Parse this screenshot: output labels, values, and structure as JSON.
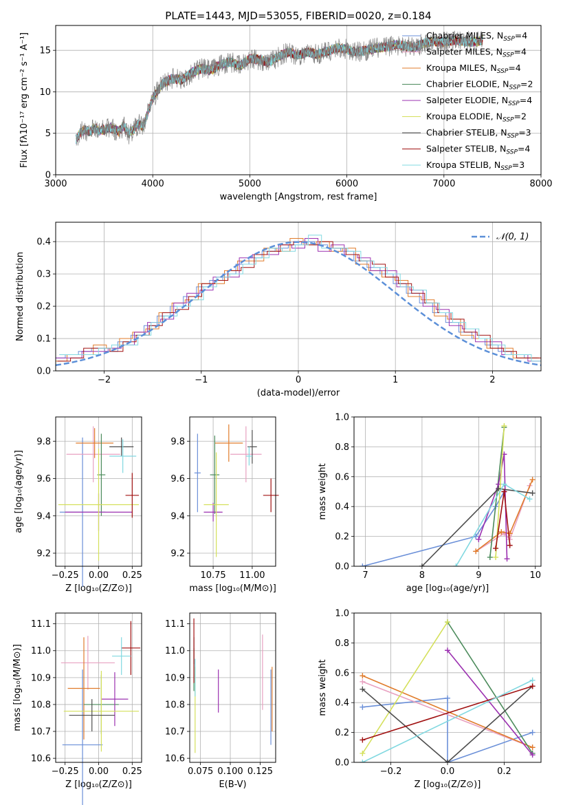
{
  "figure": {
    "title": "PLATE=1443, MJD=53055, FIBERID=0020, z=0.184"
  },
  "models": [
    {
      "name": "Chabrier MILES",
      "nssp": "4",
      "color": "#6a8fd8"
    },
    {
      "name": "Salpeter MILES",
      "nssp": "4",
      "color": "#e8a0c0"
    },
    {
      "name": "Kroupa MILES",
      "nssp": "4",
      "color": "#e07b2a"
    },
    {
      "name": "Chabrier ELODIE",
      "nssp": "2",
      "color": "#4a8a5a"
    },
    {
      "name": "Salpeter ELODIE",
      "nssp": "4",
      "color": "#9b30b0"
    },
    {
      "name": "Kroupa ELODIE",
      "nssp": "2",
      "color": "#d4e05a"
    },
    {
      "name": "Chabrier STELIB",
      "nssp": "3",
      "color": "#4d4d4d"
    },
    {
      "name": "Salpeter STELIB",
      "nssp": "4",
      "color": "#a01010"
    },
    {
      "name": "Kroupa STELIB",
      "nssp": "3",
      "color": "#80d8e0"
    }
  ],
  "chart_data": [
    {
      "id": "spectrum",
      "type": "line",
      "xlabel": "wavelength [Angstrom, rest frame]",
      "ylabel": "Flux [fλ10⁻¹⁷ erg cm⁻² s⁻¹ A⁻¹]",
      "xlim": [
        3000,
        8000
      ],
      "ylim": [
        0,
        18
      ],
      "xticks": [
        3000,
        4000,
        5000,
        6000,
        7000,
        8000
      ],
      "yticks": [
        0,
        5,
        10,
        15
      ],
      "data_color": "#808080",
      "x": [
        3210,
        3250,
        3300,
        3350,
        3400,
        3450,
        3500,
        3550,
        3600,
        3650,
        3700,
        3750,
        3800,
        3850,
        3900,
        3950,
        4000,
        4100,
        4200,
        4300,
        4400,
        4500,
        4600,
        4700,
        4800,
        4900,
        5000,
        5100,
        5200,
        5300,
        5400,
        5500,
        5600,
        5700,
        5800,
        5900,
        6000,
        6100,
        6200,
        6300,
        6400,
        6500,
        6600,
        6700,
        6800,
        6900,
        7000,
        7100,
        7200,
        7300,
        7400
      ],
      "y": [
        4.3,
        5.0,
        5.4,
        5.2,
        5.6,
        5.3,
        5.4,
        5.7,
        5.5,
        5.2,
        5.9,
        4.9,
        5.4,
        6.1,
        5.8,
        7.5,
        9.2,
        11.0,
        11.6,
        11.4,
        12.3,
        12.8,
        12.6,
        13.3,
        13.6,
        13.1,
        14.0,
        13.9,
        13.5,
        14.3,
        14.8,
        14.4,
        14.8,
        14.5,
        14.9,
        15.3,
        15.1,
        14.8,
        15.0,
        15.3,
        15.4,
        15.7,
        15.5,
        15.4,
        15.9,
        16.1,
        16.0,
        16.2,
        16.1,
        16.0,
        16.2
      ]
    },
    {
      "id": "residuals",
      "type": "line",
      "xlabel": "(data-model)/error",
      "ylabel": "Normed distribution",
      "xlim": [
        -2.5,
        2.5
      ],
      "ylim": [
        0,
        0.46
      ],
      "xticks": [
        -2,
        -1,
        0,
        1,
        2
      ],
      "yticks": [
        0.0,
        0.1,
        0.2,
        0.3,
        0.4
      ],
      "legend": "𝒩(0, 1)",
      "series": [
        {
          "model": 0,
          "values": [
            0.04,
            0.05,
            0.06,
            0.07,
            0.06,
            0.09,
            0.11,
            0.14,
            0.17,
            0.2,
            0.23,
            0.26,
            0.28,
            0.3,
            0.33,
            0.35,
            0.37,
            0.38,
            0.39,
            0.4,
            0.39,
            0.38,
            0.37,
            0.34,
            0.32,
            0.3,
            0.27,
            0.24,
            0.21,
            0.18,
            0.15,
            0.12,
            0.1,
            0.08,
            0.06,
            0.05,
            0.04
          ]
        },
        {
          "model": 2,
          "values": [
            0.03,
            0.05,
            0.05,
            0.08,
            0.07,
            0.1,
            0.12,
            0.13,
            0.18,
            0.21,
            0.22,
            0.27,
            0.27,
            0.31,
            0.34,
            0.34,
            0.38,
            0.37,
            0.41,
            0.39,
            0.4,
            0.37,
            0.38,
            0.33,
            0.31,
            0.29,
            0.28,
            0.23,
            0.22,
            0.17,
            0.16,
            0.11,
            0.1,
            0.07,
            0.07,
            0.04,
            0.04
          ]
        },
        {
          "model": 4,
          "values": [
            0.04,
            0.04,
            0.06,
            0.06,
            0.07,
            0.08,
            0.12,
            0.15,
            0.16,
            0.21,
            0.24,
            0.25,
            0.29,
            0.29,
            0.35,
            0.36,
            0.36,
            0.39,
            0.38,
            0.41,
            0.37,
            0.39,
            0.36,
            0.35,
            0.31,
            0.31,
            0.26,
            0.25,
            0.2,
            0.19,
            0.14,
            0.13,
            0.09,
            0.09,
            0.05,
            0.05,
            0.03
          ]
        },
        {
          "model": 7,
          "values": [
            0.03,
            0.04,
            0.07,
            0.07,
            0.06,
            0.09,
            0.11,
            0.14,
            0.18,
            0.19,
            0.23,
            0.27,
            0.28,
            0.31,
            0.32,
            0.36,
            0.37,
            0.39,
            0.4,
            0.39,
            0.4,
            0.38,
            0.36,
            0.34,
            0.33,
            0.29,
            0.27,
            0.24,
            0.21,
            0.18,
            0.16,
            0.12,
            0.11,
            0.07,
            0.06,
            0.04,
            0.04
          ]
        },
        {
          "model": 8,
          "values": [
            0.05,
            0.05,
            0.05,
            0.07,
            0.08,
            0.08,
            0.11,
            0.15,
            0.17,
            0.2,
            0.22,
            0.26,
            0.29,
            0.3,
            0.33,
            0.35,
            0.38,
            0.37,
            0.39,
            0.42,
            0.38,
            0.38,
            0.37,
            0.34,
            0.32,
            0.3,
            0.26,
            0.25,
            0.21,
            0.18,
            0.15,
            0.13,
            0.1,
            0.08,
            0.05,
            0.05,
            0.03
          ]
        }
      ]
    },
    {
      "id": "age-vs-Z",
      "type": "scatter",
      "xlabel": "Z [log₁₀(Z/Z⊙)]",
      "ylabel": "age  [log₁₀(age/yr)]",
      "xlim": [
        -0.32,
        0.32
      ],
      "ylim": [
        9.13,
        9.93
      ],
      "xticks": [
        -0.25,
        0.0,
        0.25
      ],
      "yticks": [
        9.2,
        9.4,
        9.6,
        9.8
      ],
      "points": [
        {
          "model": 0,
          "x": -0.12,
          "xerr": 0.17,
          "y": 9.42,
          "yerr": 0.4
        },
        {
          "model": 1,
          "x": -0.04,
          "xerr": 0.2,
          "y": 9.73,
          "yerr": 0.15
        },
        {
          "model": 2,
          "x": -0.03,
          "xerr": 0.14,
          "y": 9.79,
          "yerr": 0.08
        },
        {
          "model": 3,
          "x": 0.02,
          "xerr": 0.03,
          "y": 9.62,
          "yerr": 0.22
        },
        {
          "model": 4,
          "x": 0.0,
          "xerr": 0.25,
          "y": 9.42,
          "yerr": 0.1
        },
        {
          "model": 5,
          "x": 0.0,
          "xerr": 0.3,
          "y": 9.46,
          "yerr": 0.3
        },
        {
          "model": 6,
          "x": 0.17,
          "xerr": 0.09,
          "y": 9.77,
          "yerr": 0.05
        },
        {
          "model": 7,
          "x": 0.25,
          "xerr": 0.05,
          "y": 9.51,
          "yerr": 0.12
        },
        {
          "model": 8,
          "x": 0.18,
          "xerr": 0.1,
          "y": 9.72,
          "yerr": 0.09
        }
      ]
    },
    {
      "id": "age-vs-mass",
      "type": "scatter",
      "xlabel": "mass [log₁₀(M/M⊙)]",
      "ylabel": "",
      "xlim": [
        10.6,
        11.15
      ],
      "ylim": [
        9.13,
        9.93
      ],
      "xticks": [
        10.75,
        11.0
      ],
      "yticks": [
        9.2,
        9.4,
        9.6,
        9.8
      ],
      "points": [
        {
          "model": 0,
          "x": 10.65,
          "xerr": 0.02,
          "y": 9.63,
          "yerr": 0.21
        },
        {
          "model": 1,
          "x": 10.96,
          "xerr": 0.1,
          "y": 9.73,
          "yerr": 0.15
        },
        {
          "model": 2,
          "x": 10.85,
          "xerr": 0.09,
          "y": 9.79,
          "yerr": 0.1
        },
        {
          "model": 3,
          "x": 10.76,
          "xerr": 0.03,
          "y": 9.62,
          "yerr": 0.21
        },
        {
          "model": 4,
          "x": 10.75,
          "xerr": 0.06,
          "y": 9.42,
          "yerr": 0.05
        },
        {
          "model": 5,
          "x": 10.77,
          "xerr": 0.08,
          "y": 9.46,
          "yerr": 0.28
        },
        {
          "model": 6,
          "x": 11.0,
          "xerr": 0.03,
          "y": 9.77,
          "yerr": 0.09
        },
        {
          "model": 7,
          "x": 11.12,
          "xerr": 0.05,
          "y": 9.51,
          "yerr": 0.09
        },
        {
          "model": 8,
          "x": 10.98,
          "xerr": 0.02,
          "y": 9.72,
          "yerr": 0.05
        }
      ]
    },
    {
      "id": "mass-weight-vs-age",
      "type": "line",
      "xlabel": "age  [log₁₀(age/yr)]",
      "ylabel": "mass weight",
      "xlim": [
        6.8,
        10.1
      ],
      "ylim": [
        0,
        1
      ],
      "xticks": [
        7,
        8,
        9,
        10
      ],
      "yticks": [
        0.0,
        0.2,
        0.4,
        0.6,
        0.8,
        1.0
      ],
      "series": [
        {
          "model": 0,
          "x": [
            6.95,
            8.95,
            9.3,
            9.45
          ],
          "y": [
            0.0,
            0.2,
            0.4,
            0.5
          ]
        },
        {
          "model": 1,
          "x": [
            8.95,
            9.45,
            9.55,
            9.9
          ],
          "y": [
            0.1,
            0.22,
            0.18,
            0.54
          ]
        },
        {
          "model": 2,
          "x": [
            8.95,
            9.4,
            9.55,
            9.95
          ],
          "y": [
            0.1,
            0.23,
            0.22,
            0.58
          ]
        },
        {
          "model": 3,
          "x": [
            9.2,
            9.45
          ],
          "y": [
            0.06,
            0.93
          ]
        },
        {
          "model": 4,
          "x": [
            9.0,
            9.35,
            9.45,
            9.5
          ],
          "y": [
            0.18,
            0.55,
            0.75,
            0.05
          ]
        },
        {
          "model": 5,
          "x": [
            9.3,
            9.45
          ],
          "y": [
            0.06,
            0.94
          ]
        },
        {
          "model": 6,
          "x": [
            8.0,
            9.35,
            9.95
          ],
          "y": [
            0.0,
            0.52,
            0.49
          ]
        },
        {
          "model": 7,
          "x": [
            9.3,
            9.45,
            9.55
          ],
          "y": [
            0.12,
            0.5,
            0.14
          ]
        },
        {
          "model": 8,
          "x": [
            8.6,
            9.45,
            9.9
          ],
          "y": [
            0.0,
            0.55,
            0.45
          ]
        }
      ]
    },
    {
      "id": "mass-vs-Z",
      "type": "scatter",
      "xlabel": "Z [log₁₀(Z/Z⊙)]",
      "ylabel": "mass [log₁₀(M/M⊙)]",
      "xlim": [
        -0.32,
        0.32
      ],
      "ylim": [
        10.585,
        11.14
      ],
      "xticks": [
        -0.25,
        0.0,
        0.25
      ],
      "yticks": [
        10.6,
        10.7,
        10.8,
        10.9,
        11.0,
        11.1
      ],
      "points": [
        {
          "model": 0,
          "x": -0.12,
          "xerr": 0.15,
          "y": 10.65,
          "yerr": 0.28
        },
        {
          "model": 1,
          "x": -0.08,
          "xerr": 0.2,
          "y": 10.955,
          "yerr": 0.1
        },
        {
          "model": 2,
          "x": -0.11,
          "xerr": 0.12,
          "y": 10.86,
          "yerr": 0.19
        },
        {
          "model": 3,
          "x": 0.02,
          "xerr": 0.13,
          "y": 10.8,
          "yerr": 0.11
        },
        {
          "model": 4,
          "x": 0.12,
          "xerr": 0.1,
          "y": 10.82,
          "yerr": 0.1
        },
        {
          "model": 5,
          "x": 0.02,
          "xerr": 0.28,
          "y": 10.775,
          "yerr": 0.15
        },
        {
          "model": 6,
          "x": -0.05,
          "xerr": 0.17,
          "y": 10.76,
          "yerr": 0.06
        },
        {
          "model": 7,
          "x": 0.24,
          "xerr": 0.07,
          "y": 11.01,
          "yerr": 0.1
        },
        {
          "model": 8,
          "x": 0.17,
          "xerr": 0.07,
          "y": 10.98,
          "yerr": 0.07
        }
      ]
    },
    {
      "id": "mass-vs-ebv",
      "type": "scatter",
      "xlabel": "E(B-V)",
      "ylabel": "",
      "xlim": [
        0.066,
        0.138
      ],
      "ylim": [
        10.585,
        11.14
      ],
      "xticks": [
        0.075,
        0.1,
        0.125
      ],
      "yticks": [
        10.6,
        10.7,
        10.8,
        10.9,
        11.0,
        11.1
      ],
      "points": [
        {
          "model": 0,
          "x": 0.134,
          "xerr": 0,
          "y": 10.79,
          "yerr": 0.14
        },
        {
          "model": 1,
          "x": 0.127,
          "xerr": 0,
          "y": 10.92,
          "yerr": 0.14
        },
        {
          "model": 2,
          "x": 0.135,
          "xerr": 0,
          "y": 10.82,
          "yerr": 0.12
        },
        {
          "model": 3,
          "x": 0.0695,
          "xerr": 0,
          "y": 10.93,
          "yerr": 0.08
        },
        {
          "model": 4,
          "x": 0.09,
          "xerr": 0,
          "y": 10.85,
          "yerr": 0.08
        },
        {
          "model": 5,
          "x": 0.0705,
          "xerr": 0,
          "y": 10.78,
          "yerr": 0.16
        },
        {
          "model": 6,
          "x": 0.0695,
          "xerr": 0,
          "y": 11.0,
          "yerr": 0.05
        },
        {
          "model": 7,
          "x": 0.0695,
          "xerr": 0,
          "y": 11.0,
          "yerr": 0.12
        },
        {
          "model": 8,
          "x": 0.0705,
          "xerr": 0,
          "y": 10.9,
          "yerr": 0.07
        }
      ]
    },
    {
      "id": "mass-weight-vs-Z",
      "type": "line",
      "xlabel": "Z [log₁₀(Z/Z⊙)]",
      "ylabel": "mass weight",
      "xlim": [
        -0.33,
        0.33
      ],
      "ylim": [
        0,
        1
      ],
      "xticks": [
        -0.2,
        0.0,
        0.2
      ],
      "yticks": [
        0.0,
        0.2,
        0.4,
        0.6,
        0.8,
        1.0
      ],
      "series": [
        {
          "model": 0,
          "x": [
            -0.3,
            0.0,
            0.0,
            0.3
          ],
          "y": [
            0.37,
            0.43,
            0.0,
            0.2
          ]
        },
        {
          "model": 1,
          "x": [
            -0.3,
            0.3
          ],
          "y": [
            0.54,
            0.1
          ]
        },
        {
          "model": 2,
          "x": [
            -0.3,
            0.3
          ],
          "y": [
            0.58,
            0.1
          ]
        },
        {
          "model": 3,
          "x": [
            0.0,
            0.3
          ],
          "y": [
            0.94,
            0.06
          ]
        },
        {
          "model": 4,
          "x": [
            0.0,
            0.3
          ],
          "y": [
            0.75,
            0.05
          ]
        },
        {
          "model": 5,
          "x": [
            -0.3,
            0.0
          ],
          "y": [
            0.06,
            0.94
          ]
        },
        {
          "model": 6,
          "x": [
            -0.3,
            0.0,
            0.3
          ],
          "y": [
            0.49,
            0.0,
            0.51
          ]
        },
        {
          "model": 7,
          "x": [
            -0.3,
            0.3
          ],
          "y": [
            0.15,
            0.51
          ]
        },
        {
          "model": 8,
          "x": [
            -0.3,
            0.3
          ],
          "y": [
            0.0,
            0.55
          ]
        }
      ]
    }
  ]
}
